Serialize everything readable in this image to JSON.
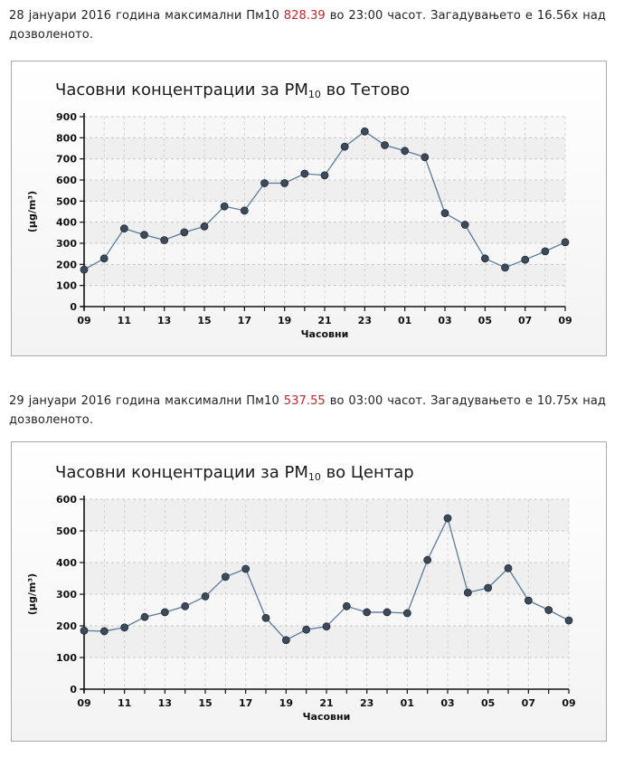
{
  "paragraphs": [
    {
      "before": "28 јануари 2016 година максимални Пм10 ",
      "value": "828.39",
      "after": " во 23:00 часот. Загадувањето е 16.56x над дозволеното."
    },
    {
      "before": "29 јануари 2016 година максимални Пм10 ",
      "value": "537.55",
      "after": " во 03:00 часот. Загадувањето е 10.75x над дозволеното."
    }
  ],
  "colors": {
    "highlight": "#c0282c",
    "line": "#5a7a9a",
    "marker": "#3c4a5a"
  },
  "chart_data": [
    {
      "type": "line",
      "title": "Часовни концентрации за PM",
      "title_sub": "10",
      "title_suffix": " во Тетово",
      "xlabel": "Часовни",
      "ylabel": "(µg/m³)",
      "ylim": [
        0,
        900
      ],
      "yticks": [
        0,
        100,
        200,
        300,
        400,
        500,
        600,
        700,
        800,
        900
      ],
      "grid": true,
      "x": [
        "09",
        "10",
        "11",
        "12",
        "13",
        "14",
        "15",
        "16",
        "17",
        "18",
        "19",
        "20",
        "21",
        "22",
        "23",
        "00",
        "01",
        "02",
        "03",
        "04",
        "05",
        "06",
        "07",
        "08",
        "09"
      ],
      "xtick_labels": [
        "09",
        "11",
        "13",
        "15",
        "17",
        "19",
        "21",
        "23",
        "01",
        "03",
        "05",
        "07",
        "09"
      ],
      "series": [
        {
          "values": [
            175,
            228,
            370,
            340,
            315,
            352,
            380,
            475,
            455,
            585,
            585,
            630,
            622,
            758,
            830,
            765,
            738,
            708,
            443,
            388,
            228,
            185,
            222,
            262,
            305
          ]
        }
      ]
    },
    {
      "type": "line",
      "title": "Часовни концентрации за PM",
      "title_sub": "10",
      "title_suffix": " во Центар",
      "xlabel": "Часовни",
      "ylabel": "(µg/m³)",
      "ylim": [
        0,
        600
      ],
      "yticks": [
        0,
        100,
        200,
        300,
        400,
        500,
        600
      ],
      "grid": true,
      "x": [
        "09",
        "10",
        "11",
        "12",
        "13",
        "14",
        "15",
        "16",
        "17",
        "18",
        "19",
        "20",
        "21",
        "22",
        "23",
        "00",
        "01",
        "02",
        "03",
        "04",
        "05",
        "06",
        "07",
        "08",
        "09"
      ],
      "xtick_labels": [
        "09",
        "11",
        "13",
        "15",
        "17",
        "19",
        "21",
        "23",
        "01",
        "03",
        "05",
        "07",
        "09"
      ],
      "series": [
        {
          "values": [
            185,
            183,
            195,
            228,
            243,
            262,
            293,
            355,
            380,
            225,
            155,
            188,
            198,
            262,
            243,
            243,
            240,
            408,
            540,
            305,
            320,
            382,
            280,
            250,
            217
          ]
        }
      ]
    }
  ]
}
